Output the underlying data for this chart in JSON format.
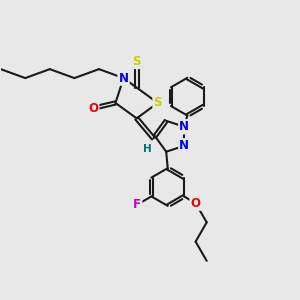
{
  "background_color": "#e8e8e8",
  "bond_color": "#1a1a1a",
  "bond_width": 1.5,
  "atom_colors": {
    "S": "#cccc00",
    "N": "#0000ee",
    "O": "#ee0000",
    "F": "#cc00cc",
    "H": "#007070",
    "C": "#1a1a1a"
  },
  "font_size_atom": 8.5,
  "font_size_H": 7.5
}
